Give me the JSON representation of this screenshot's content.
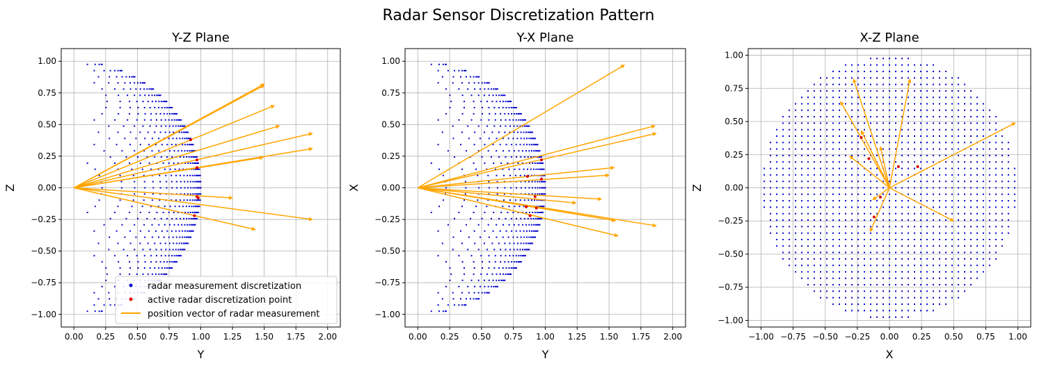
{
  "figure": {
    "title": "Radar Sensor Discretization Pattern"
  },
  "colors": {
    "discretization": "#0000cc",
    "active": "#dd0000",
    "vector": "#ffa500",
    "grid": "#b0b0b0"
  },
  "legend": {
    "items": [
      {
        "label": "radar measurement discretization",
        "kind": "dot",
        "color": "#0000cc"
      },
      {
        "label": "active radar discretization point",
        "kind": "dot",
        "color": "#dd0000"
      },
      {
        "label": "position vector of radar measurement",
        "kind": "line",
        "color": "#ffa500"
      }
    ]
  },
  "chart_data": [
    {
      "type": "scatter",
      "title": "Y-Z Plane",
      "xlabel": "Y",
      "ylabel": "Z",
      "xlim": [
        -0.1,
        2.1
      ],
      "ylim": [
        -1.1,
        1.1
      ],
      "xticks": [
        "0.00",
        "0.25",
        "0.50",
        "0.75",
        "1.00",
        "1.25",
        "1.50",
        "1.75",
        "2.00"
      ],
      "yticks": [
        "-1.00",
        "-0.75",
        "-0.50",
        "-0.25",
        "0.00",
        "0.25",
        "0.50",
        "0.75",
        "1.00"
      ],
      "grid": true,
      "legend_position": "lower-right",
      "active_points": [
        [
          0.92,
          0.38
        ],
        [
          0.97,
          0.22
        ],
        [
          0.97,
          0.16
        ],
        [
          0.97,
          -0.07
        ],
        [
          0.98,
          -0.08
        ],
        [
          0.95,
          -0.22
        ]
      ],
      "vectors": [
        [
          1.5,
          0.82
        ],
        [
          1.5,
          0.81
        ],
        [
          1.58,
          0.65
        ],
        [
          1.62,
          0.49
        ],
        [
          1.88,
          0.43
        ],
        [
          1.88,
          0.31
        ],
        [
          1.49,
          0.24
        ],
        [
          1.25,
          -0.08
        ],
        [
          1.88,
          -0.25
        ],
        [
          1.43,
          -0.33
        ]
      ]
    },
    {
      "type": "scatter",
      "title": "Y-X Plane",
      "xlabel": "Y",
      "ylabel": "X",
      "xlim": [
        -0.1,
        2.1
      ],
      "ylim": [
        -1.1,
        1.1
      ],
      "xticks": [
        "0.00",
        "0.25",
        "0.50",
        "0.75",
        "1.00",
        "1.25",
        "1.50",
        "1.75",
        "2.00"
      ],
      "yticks": [
        "-1.00",
        "-0.75",
        "-0.50",
        "-0.25",
        "0.00",
        "0.25",
        "0.50",
        "0.75",
        "1.00"
      ],
      "grid": true,
      "active_points": [
        [
          0.97,
          0.22
        ],
        [
          0.86,
          0.09
        ],
        [
          0.97,
          0.07
        ],
        [
          0.92,
          -0.07
        ],
        [
          0.85,
          -0.15
        ],
        [
          0.93,
          -0.16
        ],
        [
          0.88,
          -0.22
        ]
      ],
      "vectors": [
        [
          1.62,
          0.97
        ],
        [
          1.86,
          0.49
        ],
        [
          1.87,
          0.43
        ],
        [
          1.54,
          0.16
        ],
        [
          1.5,
          0.1
        ],
        [
          1.44,
          -0.09
        ],
        [
          1.24,
          -0.12
        ],
        [
          1.55,
          -0.26
        ],
        [
          1.87,
          -0.3
        ],
        [
          1.57,
          -0.38
        ]
      ]
    },
    {
      "type": "scatter",
      "title": "X-Z Plane",
      "xlabel": "X",
      "ylabel": "Z",
      "xlim": [
        -1.1,
        1.1
      ],
      "ylim": [
        -1.05,
        1.05
      ],
      "xticks": [
        "-1.00",
        "-0.75",
        "-0.50",
        "-0.25",
        "0.00",
        "0.25",
        "0.50",
        "0.75",
        "1.00"
      ],
      "yticks": [
        "-1.00",
        "-0.75",
        "-0.50",
        "-0.25",
        "0.00",
        "0.25",
        "0.50",
        "0.75",
        "1.00"
      ],
      "grid": true,
      "active_points": [
        [
          -0.22,
          0.38
        ],
        [
          -0.16,
          0.22
        ],
        [
          0.07,
          0.16
        ],
        [
          0.22,
          0.16
        ],
        [
          -0.07,
          -0.07
        ],
        [
          -0.12,
          -0.22
        ]
      ],
      "vectors": [
        [
          -0.28,
          0.82
        ],
        [
          0.16,
          0.82
        ],
        [
          -0.38,
          0.65
        ],
        [
          0.98,
          0.49
        ],
        [
          -0.22,
          0.43
        ],
        [
          -0.07,
          0.31
        ],
        [
          -0.31,
          0.24
        ],
        [
          -0.13,
          -0.09
        ],
        [
          0.5,
          -0.25
        ],
        [
          -0.15,
          -0.33
        ]
      ]
    }
  ]
}
